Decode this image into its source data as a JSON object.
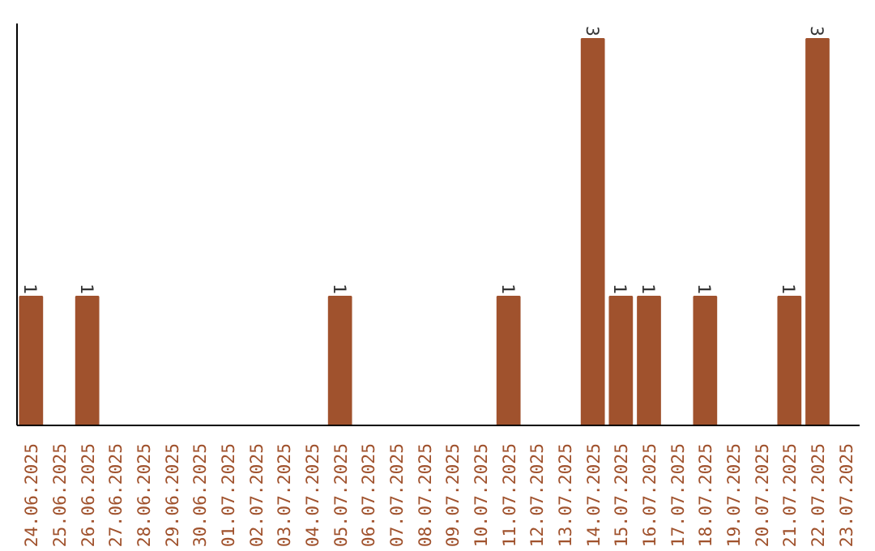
{
  "chart_data": {
    "type": "bar",
    "categories": [
      "24.06.2025",
      "25.06.2025",
      "26.06.2025",
      "27.06.2025",
      "28.06.2025",
      "29.06.2025",
      "30.06.2025",
      "01.07.2025",
      "02.07.2025",
      "03.07.2025",
      "04.07.2025",
      "05.07.2025",
      "06.07.2025",
      "07.07.2025",
      "08.07.2025",
      "09.07.2025",
      "10.07.2025",
      "11.07.2025",
      "12.07.2025",
      "13.07.2025",
      "14.07.2025",
      "15.07.2025",
      "16.07.2025",
      "17.07.2025",
      "18.07.2025",
      "19.07.2025",
      "20.07.2025",
      "21.07.2025",
      "22.07.2025",
      "23.07.2025"
    ],
    "values": [
      1,
      0,
      1,
      0,
      0,
      0,
      0,
      0,
      0,
      0,
      0,
      1,
      0,
      0,
      0,
      0,
      0,
      1,
      0,
      0,
      3,
      1,
      1,
      0,
      1,
      0,
      0,
      1,
      3,
      0
    ],
    "value_labels": [
      "1",
      null,
      "1",
      null,
      null,
      null,
      null,
      null,
      null,
      null,
      null,
      "1",
      null,
      null,
      null,
      null,
      null,
      "1",
      null,
      null,
      "3",
      "1",
      "1",
      null,
      "1",
      null,
      null,
      "1",
      "3",
      null
    ],
    "color": "#a0522d",
    "grid": false,
    "tick_labels": "x"
  }
}
